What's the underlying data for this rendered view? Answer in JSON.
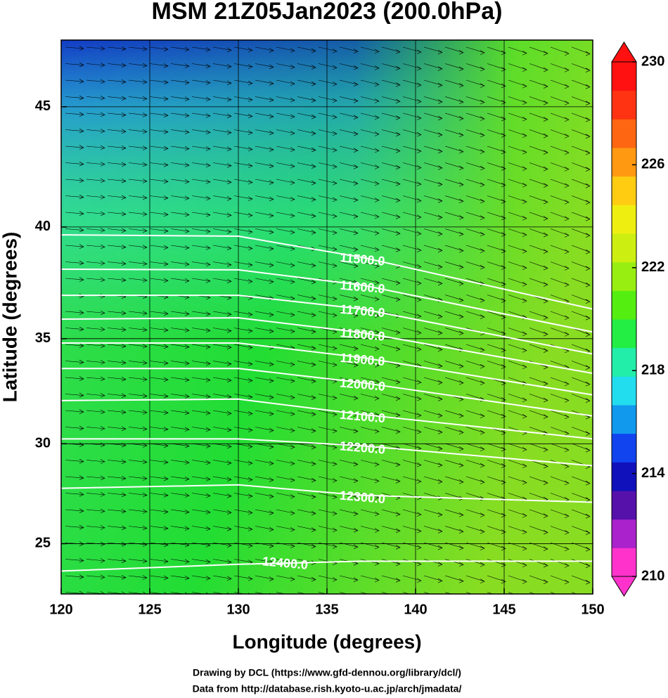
{
  "chart_data": {
    "type": "contour",
    "title": "MSM 21Z05Jan2023 (200.0hPa)",
    "xlabel": "Longitude (degrees)",
    "ylabel": "Latitude  (degrees)",
    "projection": "mercator",
    "xlim": [
      120,
      150
    ],
    "ylim": [
      22.4,
      47.6
    ],
    "xticks": [
      120,
      125,
      130,
      135,
      140,
      145,
      150
    ],
    "yticks": [
      25,
      30,
      35,
      40,
      45
    ],
    "contour_color": "#ffffff",
    "x": [
      120,
      130,
      137,
      150
    ],
    "contours": [
      {
        "level": {
          "value": 11500,
          "label": "11500.0"
        },
        "y": [
          39.66,
          39.6,
          38.67,
          36.36
        ]
      },
      {
        "level": {
          "value": 11600,
          "label": "11600.0"
        },
        "y": [
          38.15,
          38.12,
          37.44,
          35.31
        ]
      },
      {
        "level": {
          "value": 11700,
          "label": "11700.0"
        },
        "y": [
          36.98,
          36.98,
          36.36,
          34.29
        ]
      },
      {
        "level": {
          "value": 11800,
          "label": "11800.0"
        },
        "y": [
          35.9,
          35.96,
          35.28,
          33.38
        ]
      },
      {
        "level": {
          "value": 11900,
          "label": "11900.0"
        },
        "y": [
          34.8,
          34.8,
          34.12,
          32.36
        ]
      },
      {
        "level": {
          "value": 12000,
          "label": "12000.0"
        },
        "y": [
          33.61,
          33.61,
          32.94,
          31.35
        ]
      },
      {
        "level": {
          "value": 12100,
          "label": "12100.0"
        },
        "y": [
          32.09,
          32.16,
          31.42,
          30.24
        ]
      },
      {
        "level": {
          "value": 12200,
          "label": "12200.0"
        },
        "y": [
          30.24,
          30.24,
          29.9,
          28.92
        ]
      },
      {
        "level": {
          "value": 12300,
          "label": "12300.0"
        },
        "y": [
          27.8,
          27.97,
          27.45,
          27.1
        ]
      },
      {
        "level": {
          "value": 12400,
          "label": "12400.0"
        },
        "y": [
          23.59,
          23.94,
          24.1,
          24.1
        ]
      }
    ],
    "colorbar": {
      "lim": [
        210,
        230
      ],
      "ticks": [
        210,
        214,
        218,
        222,
        226,
        230
      ],
      "colors": [
        "#ff33cc",
        "#aa22cc",
        "#5511aa",
        "#1111bb",
        "#1144ee",
        "#1199ee",
        "#22ddee",
        "#22eeaa",
        "#22ee44",
        "#55ee11",
        "#99ee11",
        "#ccee11",
        "#eeee11",
        "#ffcc11",
        "#ff9911",
        "#ff6611",
        "#ff3311",
        "#ff1111"
      ]
    },
    "footer": [
      "Drawing by DCL (https://www.gfd-dennou.org/library/dcl/)",
      "Data from http://database.rish.kyoto-u.ac.jp/arch/jmadata/"
    ]
  }
}
